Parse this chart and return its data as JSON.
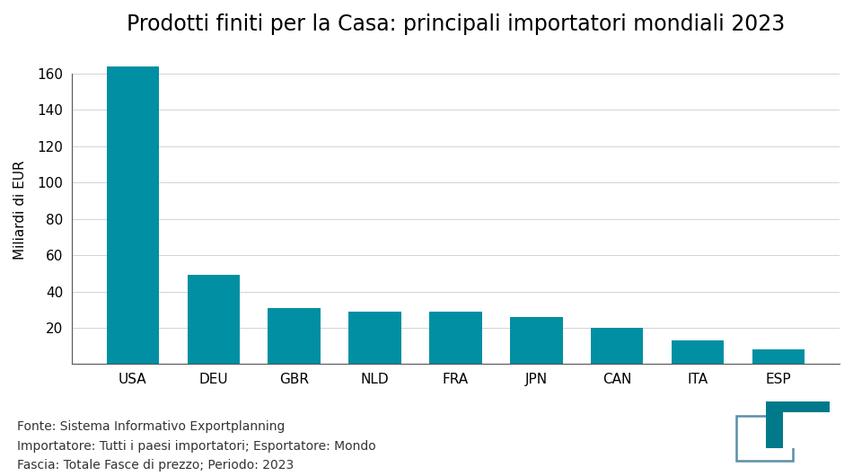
{
  "title": "Prodotti finiti per la Casa: principali importatori mondiali 2023",
  "categories": [
    "USA",
    "DEU",
    "GBR",
    "NLD",
    "FRA",
    "JPN",
    "CAN",
    "ITA",
    "ESP"
  ],
  "values": [
    164,
    49,
    31,
    29,
    29,
    26,
    20,
    13,
    8
  ],
  "bar_color": "#008fa3",
  "ylabel": "Miliardi di EUR",
  "ylim": [
    0,
    170
  ],
  "yticks": [
    20,
    40,
    60,
    80,
    100,
    120,
    140,
    160
  ],
  "background_color": "#ffffff",
  "title_fontsize": 17,
  "ylabel_fontsize": 11,
  "tick_fontsize": 11,
  "footer_lines": [
    "Fonte: Sistema Informativo Exportplanning",
    "Importatore: Tutti i paesi importatori; Esportatore: Mondo",
    "Fascia: Totale Fasce di prezzo; Periodo: 2023"
  ],
  "footer_fontsize": 10,
  "logo_color_light": "#5b8fa8",
  "logo_color_dark": "#007a8a"
}
